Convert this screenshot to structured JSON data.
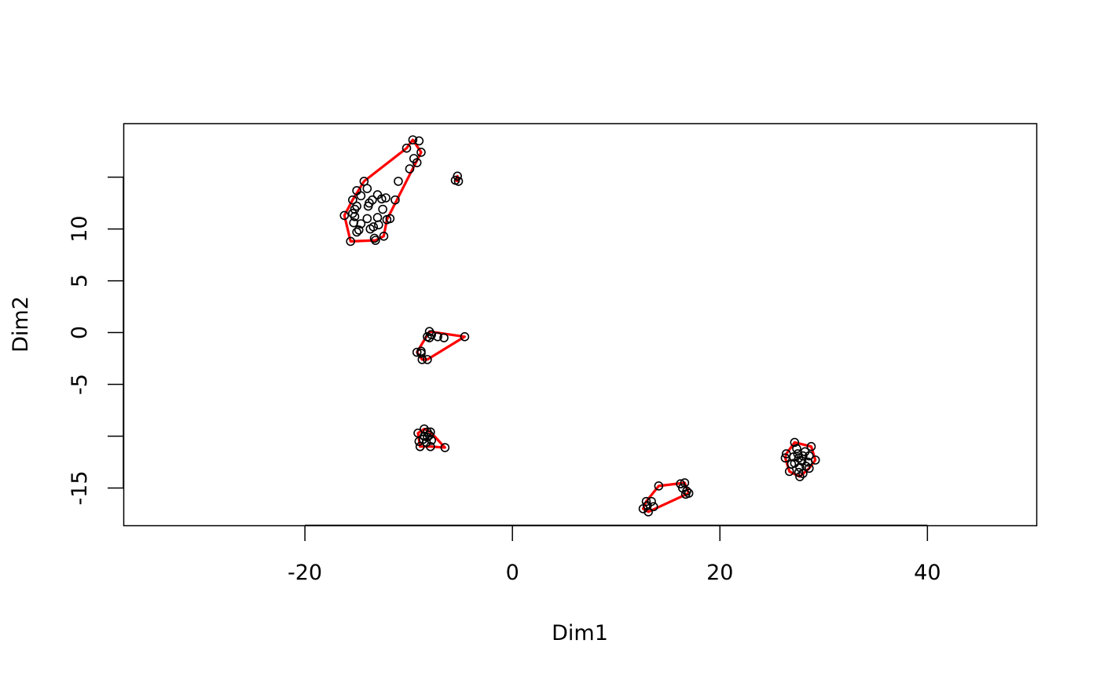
{
  "chart_data": {
    "type": "scatter",
    "title": "",
    "xlabel": "Dim1",
    "ylabel": "Dim2",
    "xlim": [
      -37.5,
      50.5
    ],
    "ylim": [
      -18.6,
      20.2
    ],
    "x_ticks": [
      -20,
      0,
      20,
      40
    ],
    "y_ticks": [
      -15,
      -10,
      -5,
      0,
      5,
      10,
      15
    ],
    "y_tick_labels": [
      {
        "value": -15,
        "label": "-15"
      },
      {
        "value": -5,
        "label": "-5"
      },
      {
        "value": 0,
        "label": "0"
      },
      {
        "value": 5,
        "label": "5"
      },
      {
        "value": 10,
        "label": "10"
      }
    ],
    "point_color": "#000000",
    "hull_color": "#ff0000",
    "grid": false,
    "clusters": [
      {
        "points": [
          [
            -9.6,
            18.6
          ],
          [
            -9.0,
            18.5
          ],
          [
            -10.2,
            17.8
          ],
          [
            -8.8,
            17.4
          ],
          [
            -9.5,
            16.8
          ],
          [
            -9.2,
            16.4
          ],
          [
            -9.9,
            15.8
          ],
          [
            -11.0,
            14.6
          ],
          [
            -14.3,
            14.6
          ],
          [
            -14.0,
            13.9
          ],
          [
            -15.0,
            13.7
          ],
          [
            -14.6,
            13.2
          ],
          [
            -13.0,
            13.3
          ],
          [
            -12.6,
            12.9
          ],
          [
            -12.2,
            13.0
          ],
          [
            -13.5,
            12.8
          ],
          [
            -11.3,
            12.8
          ],
          [
            -15.4,
            12.8
          ],
          [
            -13.8,
            12.5
          ],
          [
            -13.9,
            12.2
          ],
          [
            -15.0,
            12.2
          ],
          [
            -15.2,
            11.9
          ],
          [
            -12.5,
            11.9
          ],
          [
            -15.4,
            11.5
          ],
          [
            -15.2,
            11.2
          ],
          [
            -14.0,
            11.0
          ],
          [
            -13.0,
            11.1
          ],
          [
            -11.8,
            11.0
          ],
          [
            -16.2,
            11.3
          ],
          [
            -12.1,
            10.9
          ],
          [
            -14.6,
            10.5
          ],
          [
            -15.3,
            10.6
          ],
          [
            -13.4,
            10.2
          ],
          [
            -13.7,
            10.0
          ],
          [
            -12.9,
            10.4
          ],
          [
            -15.0,
            9.7
          ],
          [
            -14.8,
            9.9
          ],
          [
            -13.3,
            9.1
          ],
          [
            -12.4,
            9.3
          ],
          [
            -15.6,
            8.8
          ],
          [
            -13.2,
            8.9
          ]
        ],
        "hull": [
          [
            -9.6,
            18.6
          ],
          [
            -8.8,
            17.4
          ],
          [
            -12.1,
            10.9
          ],
          [
            -12.4,
            9.3
          ],
          [
            -13.2,
            8.9
          ],
          [
            -15.6,
            8.8
          ],
          [
            -16.2,
            11.3
          ],
          [
            -15.4,
            12.8
          ],
          [
            -14.3,
            14.6
          ],
          [
            -10.2,
            17.8
          ]
        ]
      },
      {
        "points": [
          [
            -5.3,
            15.1
          ],
          [
            -5.5,
            14.7
          ],
          [
            -5.2,
            14.6
          ]
        ],
        "hull": [
          [
            -5.3,
            15.1
          ],
          [
            -5.2,
            14.6
          ],
          [
            -5.5,
            14.7
          ]
        ]
      },
      {
        "points": [
          [
            -8.0,
            0.1
          ],
          [
            -7.8,
            -0.2
          ],
          [
            -8.2,
            -0.4
          ],
          [
            -8.0,
            -0.5
          ],
          [
            -7.2,
            -0.4
          ],
          [
            -6.6,
            -0.5
          ],
          [
            -4.6,
            -0.4
          ],
          [
            -9.2,
            -1.9
          ],
          [
            -8.8,
            -1.8
          ],
          [
            -8.8,
            -2.0
          ],
          [
            -8.7,
            -2.6
          ],
          [
            -8.2,
            -2.6
          ]
        ],
        "hull": [
          [
            -8.0,
            0.1
          ],
          [
            -4.6,
            -0.4
          ],
          [
            -8.2,
            -2.6
          ],
          [
            -8.7,
            -2.6
          ],
          [
            -9.2,
            -1.9
          ]
        ]
      },
      {
        "points": [
          [
            -8.5,
            -9.3
          ],
          [
            -9.1,
            -9.7
          ],
          [
            -8.2,
            -9.6
          ],
          [
            -7.9,
            -9.6
          ],
          [
            -8.5,
            -10.0
          ],
          [
            -8.0,
            -9.9
          ],
          [
            -8.2,
            -10.1
          ],
          [
            -8.6,
            -10.3
          ],
          [
            -8.3,
            -10.6
          ],
          [
            -7.8,
            -10.4
          ],
          [
            -9.0,
            -10.5
          ],
          [
            -8.9,
            -11.0
          ],
          [
            -7.9,
            -11.0
          ],
          [
            -6.5,
            -11.1
          ]
        ],
        "hull": [
          [
            -8.5,
            -9.3
          ],
          [
            -7.9,
            -9.6
          ],
          [
            -6.5,
            -11.1
          ],
          [
            -7.9,
            -11.0
          ],
          [
            -8.9,
            -11.0
          ],
          [
            -9.1,
            -9.7
          ]
        ]
      },
      {
        "points": [
          [
            16.6,
            -14.5
          ],
          [
            16.2,
            -14.6
          ],
          [
            14.1,
            -14.8
          ],
          [
            16.4,
            -15.0
          ],
          [
            16.8,
            -15.3
          ],
          [
            17.0,
            -15.5
          ],
          [
            16.7,
            -15.6
          ],
          [
            12.9,
            -16.3
          ],
          [
            13.4,
            -16.3
          ],
          [
            13.0,
            -16.7
          ],
          [
            13.6,
            -16.8
          ],
          [
            12.6,
            -17.0
          ],
          [
            13.1,
            -17.3
          ]
        ],
        "hull": [
          [
            16.6,
            -14.5
          ],
          [
            17.0,
            -15.5
          ],
          [
            13.1,
            -17.3
          ],
          [
            12.6,
            -17.0
          ],
          [
            12.9,
            -16.3
          ],
          [
            14.1,
            -14.8
          ]
        ]
      },
      {
        "points": [
          [
            27.2,
            -10.6
          ],
          [
            28.8,
            -11.0
          ],
          [
            27.4,
            -11.2
          ],
          [
            28.2,
            -11.5
          ],
          [
            26.4,
            -11.7
          ],
          [
            27.5,
            -11.7
          ],
          [
            28.0,
            -11.9
          ],
          [
            28.6,
            -11.9
          ],
          [
            27.1,
            -12.0
          ],
          [
            26.3,
            -12.1
          ],
          [
            27.6,
            -12.1
          ],
          [
            29.2,
            -12.3
          ],
          [
            27.9,
            -12.4
          ],
          [
            28.5,
            -12.5
          ],
          [
            27.2,
            -12.6
          ],
          [
            26.9,
            -12.7
          ],
          [
            28.3,
            -12.9
          ],
          [
            27.7,
            -13.0
          ],
          [
            28.6,
            -13.1
          ],
          [
            26.7,
            -13.4
          ],
          [
            27.6,
            -13.5
          ],
          [
            28.0,
            -13.6
          ],
          [
            27.7,
            -13.9
          ]
        ],
        "hull": [
          [
            27.2,
            -10.6
          ],
          [
            28.8,
            -11.0
          ],
          [
            29.2,
            -12.3
          ],
          [
            28.6,
            -13.1
          ],
          [
            27.7,
            -13.9
          ],
          [
            26.7,
            -13.4
          ],
          [
            26.3,
            -12.1
          ],
          [
            26.4,
            -11.7
          ]
        ]
      }
    ]
  }
}
